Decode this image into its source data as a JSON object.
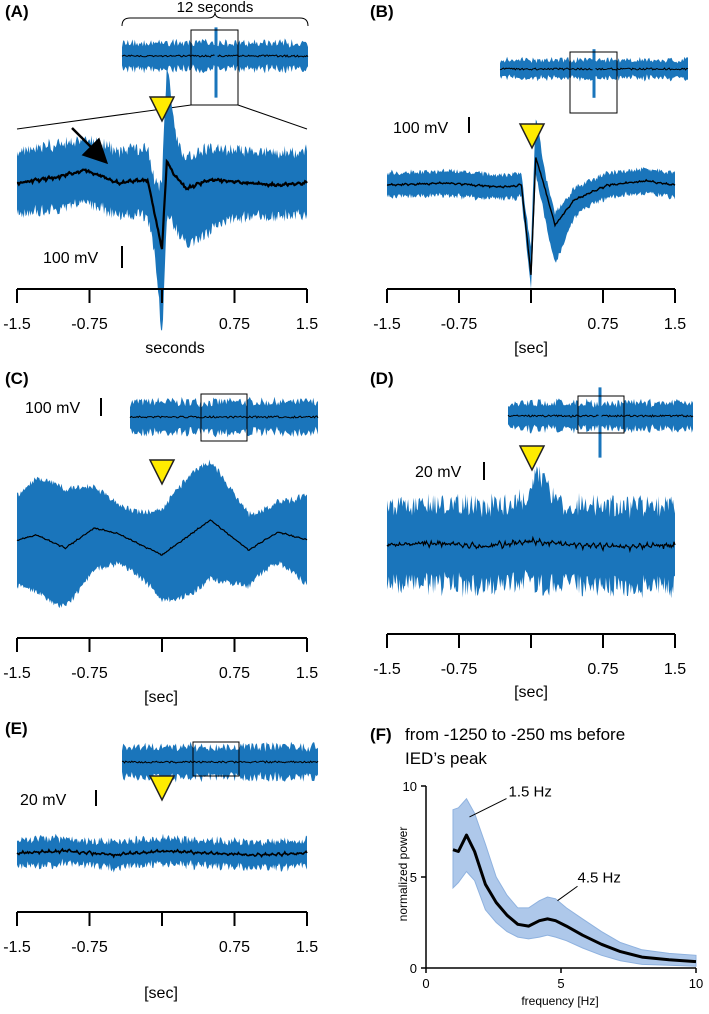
{
  "figure": {
    "colors": {
      "band": "#1a75bb",
      "mean": "#000000",
      "marker": "#ffec00",
      "marker_stroke": "#222222",
      "psd_band": "#aec8ea",
      "psd_line": "#000000"
    }
  },
  "panels": {
    "A": {
      "label": "(A)",
      "overview_label": "12 seconds",
      "scale": "100 mV",
      "xlabel": "seconds",
      "xticks": [
        "-1.5",
        "-0.75",
        "0.75",
        "1.5"
      ],
      "icon": "arrow-icon"
    },
    "B": {
      "label": "(B)",
      "scale": "100 mV",
      "xlabel": "[sec]",
      "xticks": [
        "-1.5",
        "-0.75",
        "0.75",
        "1.5"
      ]
    },
    "C": {
      "label": "(C)",
      "scale": "100 mV",
      "xlabel": "[sec]",
      "xticks": [
        "-1.5",
        "-0.75",
        "0.75",
        "1.5"
      ]
    },
    "D": {
      "label": "(D)",
      "scale": "20 mV",
      "xlabel": "[sec]",
      "xticks": [
        "-1.5",
        "-0.75",
        "0.75",
        "1.5"
      ]
    },
    "E": {
      "label": "(E)",
      "scale": "20 mV",
      "xlabel": "[sec]",
      "xticks": [
        "-1.5",
        "-0.75",
        "0.75",
        "1.5"
      ]
    },
    "F": {
      "label": "(F)",
      "title_line1": "from -1250 to -250 ms before",
      "title_line2": "IED’s peak",
      "ylabel": "normalized power",
      "xlabel": "frequency [Hz]",
      "xticks": [
        "0",
        "5",
        "10"
      ],
      "yticks": [
        "0",
        "5",
        "10"
      ],
      "annotations": [
        "1.5 Hz",
        "4.5 Hz"
      ]
    }
  },
  "chart_data": [
    {
      "type": "line",
      "panel": "A",
      "x": [
        -1.5,
        -1.1,
        -0.8,
        -0.45,
        -0.15,
        0.0,
        0.05,
        0.12,
        0.25,
        0.5,
        0.9,
        1.2,
        1.5
      ],
      "y": [
        0,
        5,
        12,
        0,
        3,
        -60,
        20,
        8,
        -5,
        3,
        0,
        -2,
        0
      ],
      "xlim": [
        -1.5,
        1.5
      ],
      "scale_bar": "100 mV",
      "xlabel": "seconds"
    },
    {
      "type": "line",
      "panel": "B",
      "x": [
        -1.5,
        -0.9,
        -0.3,
        -0.1,
        0.0,
        0.05,
        0.12,
        0.25,
        0.45,
        0.8,
        1.2,
        1.5
      ],
      "y": [
        0,
        2,
        -2,
        0,
        -90,
        28,
        5,
        -40,
        -15,
        0,
        4,
        0
      ],
      "xlim": [
        -1.5,
        1.5
      ],
      "scale_bar": "100 mV",
      "xlabel": "[sec]"
    },
    {
      "type": "line",
      "panel": "C",
      "x": [
        -1.5,
        -1.3,
        -1.0,
        -0.7,
        -0.45,
        0.0,
        0.5,
        0.9,
        1.2,
        1.5
      ],
      "y": [
        0,
        5,
        -8,
        12,
        6,
        -15,
        20,
        -10,
        8,
        0
      ],
      "xlim": [
        -1.5,
        1.5
      ],
      "scale_bar": "100 mV",
      "xlabel": "[sec]"
    },
    {
      "type": "line",
      "panel": "D",
      "x": [
        -1.5,
        -1.0,
        -0.5,
        0.0,
        0.5,
        1.0,
        1.5
      ],
      "y": [
        0,
        1,
        -1,
        2,
        0,
        -1,
        0
      ],
      "xlim": [
        -1.5,
        1.5
      ],
      "scale_bar": "20 mV",
      "xlabel": "[sec]"
    },
    {
      "type": "line",
      "panel": "E",
      "x": [
        -1.5,
        -1.0,
        -0.5,
        0.0,
        0.5,
        1.0,
        1.5
      ],
      "y": [
        0,
        1,
        -1,
        1,
        0,
        -1,
        0
      ],
      "xlim": [
        -1.5,
        1.5
      ],
      "scale_bar": "20 mV",
      "xlabel": "[sec]"
    },
    {
      "type": "area",
      "panel": "F",
      "title": "from -1250 to -250 ms before IED’s peak",
      "xlabel": "frequency [Hz]",
      "ylabel": "normalized power",
      "xlim": [
        0,
        10
      ],
      "ylim": [
        0,
        10
      ],
      "x": [
        1.0,
        1.2,
        1.5,
        1.8,
        2.2,
        2.6,
        3.0,
        3.4,
        3.8,
        4.2,
        4.5,
        4.8,
        5.2,
        5.8,
        6.5,
        7.2,
        8.0,
        9.0,
        10.0
      ],
      "mean": [
        6.5,
        6.4,
        7.3,
        6.4,
        4.6,
        3.6,
        2.9,
        2.4,
        2.3,
        2.6,
        2.7,
        2.6,
        2.3,
        1.8,
        1.3,
        0.9,
        0.6,
        0.45,
        0.35
      ],
      "upper": [
        8.7,
        8.8,
        9.3,
        8.5,
        6.8,
        5.0,
        4.0,
        3.3,
        3.3,
        3.7,
        3.9,
        3.8,
        3.3,
        2.7,
        2.0,
        1.4,
        1.0,
        0.8,
        0.7
      ],
      "lower": [
        4.4,
        4.7,
        5.3,
        4.8,
        3.2,
        2.5,
        2.0,
        1.7,
        1.6,
        1.7,
        1.8,
        1.7,
        1.5,
        1.1,
        0.7,
        0.4,
        0.2,
        0.15,
        0.1
      ],
      "annotations": [
        {
          "text": "1.5 Hz",
          "x": 1.5,
          "y": 7.3
        },
        {
          "text": "4.5 Hz",
          "x": 4.5,
          "y": 2.7
        }
      ]
    }
  ]
}
